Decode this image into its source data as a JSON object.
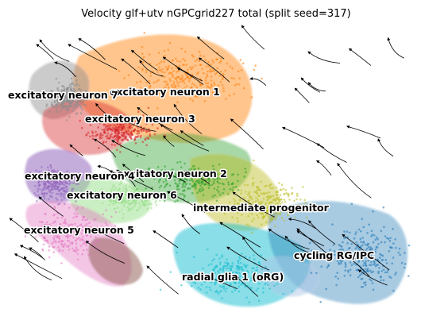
{
  "chart_data": {
    "type": "scatter",
    "title": "Velocity glf+utv nGPCgrid227 total (split seed=317)",
    "xlabel": "",
    "ylabel": "",
    "grid": false,
    "legend": "on data",
    "overlay": "velocity streamlines",
    "clusters": [
      {
        "name": "excitatory neuron 1",
        "color": "#ff7f0e",
        "x": 0.43,
        "y": 0.82
      },
      {
        "name": "excitatory neuron 7",
        "color": "#8c8c8c",
        "x": 0.12,
        "y": 0.74
      },
      {
        "name": "excitatory neuron 3",
        "color": "#d62728",
        "x": 0.26,
        "y": 0.62
      },
      {
        "name": "excitatory neuron 2",
        "color": "#2ca02c",
        "x": 0.44,
        "y": 0.45
      },
      {
        "name": "excitatory neuron 4",
        "color": "#9467bd",
        "x": 0.09,
        "y": 0.44
      },
      {
        "name": "excitatory neuron 6",
        "color": "#98df8a",
        "x": 0.28,
        "y": 0.39
      },
      {
        "name": "excitatory neuron 5",
        "color": "#e377c2",
        "x": 0.13,
        "y": 0.27
      },
      {
        "name": "intermediate progenitor",
        "color": "#bcbd22",
        "x": 0.62,
        "y": 0.37
      },
      {
        "name": "radial glia 1 (oRG)",
        "color": "#17becf",
        "x": 0.54,
        "y": 0.12
      },
      {
        "name": "cycling RG/IPC",
        "color": "#1f77b4",
        "x": 0.87,
        "y": 0.18
      }
    ]
  }
}
